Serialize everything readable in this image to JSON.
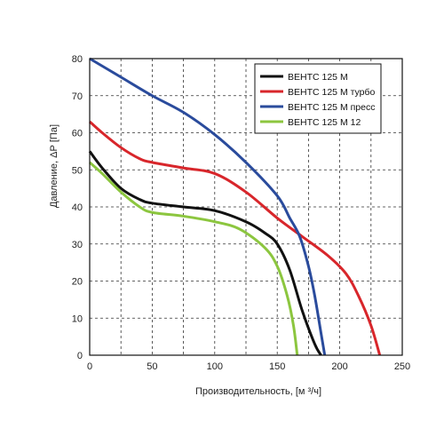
{
  "chart_data": {
    "type": "line",
    "xlabel": "Производительность, [м ³/ч]",
    "ylabel": "Давление, ΔР [Па]",
    "xlim": [
      0,
      250
    ],
    "ylim": [
      0,
      80
    ],
    "xticks": [
      0,
      50,
      100,
      150,
      200,
      250
    ],
    "yticks": [
      0,
      10,
      20,
      30,
      40,
      50,
      60,
      70,
      80
    ],
    "x_minor_step": 25,
    "grid": "dashed",
    "legend_position": "top-right",
    "series": [
      {
        "name": "ВЕНТС 125 М",
        "color": "#111111",
        "points": [
          [
            0,
            55
          ],
          [
            10,
            50.5
          ],
          [
            25,
            45
          ],
          [
            40,
            42
          ],
          [
            50,
            41
          ],
          [
            75,
            40
          ],
          [
            100,
            39
          ],
          [
            125,
            36
          ],
          [
            140,
            33
          ],
          [
            150,
            30
          ],
          [
            160,
            23
          ],
          [
            170,
            12
          ],
          [
            180,
            3
          ],
          [
            185,
            0
          ]
        ]
      },
      {
        "name": "ВЕНТС 125 М турбо",
        "color": "#d8262b",
        "points": [
          [
            0,
            63
          ],
          [
            10,
            60
          ],
          [
            25,
            56
          ],
          [
            40,
            53
          ],
          [
            50,
            52
          ],
          [
            75,
            50.5
          ],
          [
            100,
            49
          ],
          [
            125,
            44
          ],
          [
            150,
            37
          ],
          [
            170,
            32
          ],
          [
            190,
            27
          ],
          [
            205,
            22
          ],
          [
            215,
            16
          ],
          [
            225,
            8
          ],
          [
            232,
            0
          ]
        ]
      },
      {
        "name": "ВЕНТС 125 М пресс",
        "color": "#2a4b9c",
        "points": [
          [
            0,
            80
          ],
          [
            25,
            75
          ],
          [
            50,
            70
          ],
          [
            75,
            65.5
          ],
          [
            100,
            59.5
          ],
          [
            125,
            52
          ],
          [
            150,
            43
          ],
          [
            160,
            37
          ],
          [
            168,
            32
          ],
          [
            175,
            24
          ],
          [
            180,
            16
          ],
          [
            185,
            6
          ],
          [
            188,
            0
          ]
        ]
      },
      {
        "name": "ВЕНТС 125 М  12",
        "color": "#8cc63f",
        "points": [
          [
            0,
            52
          ],
          [
            10,
            49
          ],
          [
            25,
            44
          ],
          [
            40,
            40
          ],
          [
            50,
            38.5
          ],
          [
            75,
            37.5
          ],
          [
            100,
            36
          ],
          [
            120,
            34
          ],
          [
            140,
            29
          ],
          [
            150,
            24
          ],
          [
            158,
            16
          ],
          [
            163,
            8
          ],
          [
            166,
            0
          ]
        ]
      }
    ]
  }
}
